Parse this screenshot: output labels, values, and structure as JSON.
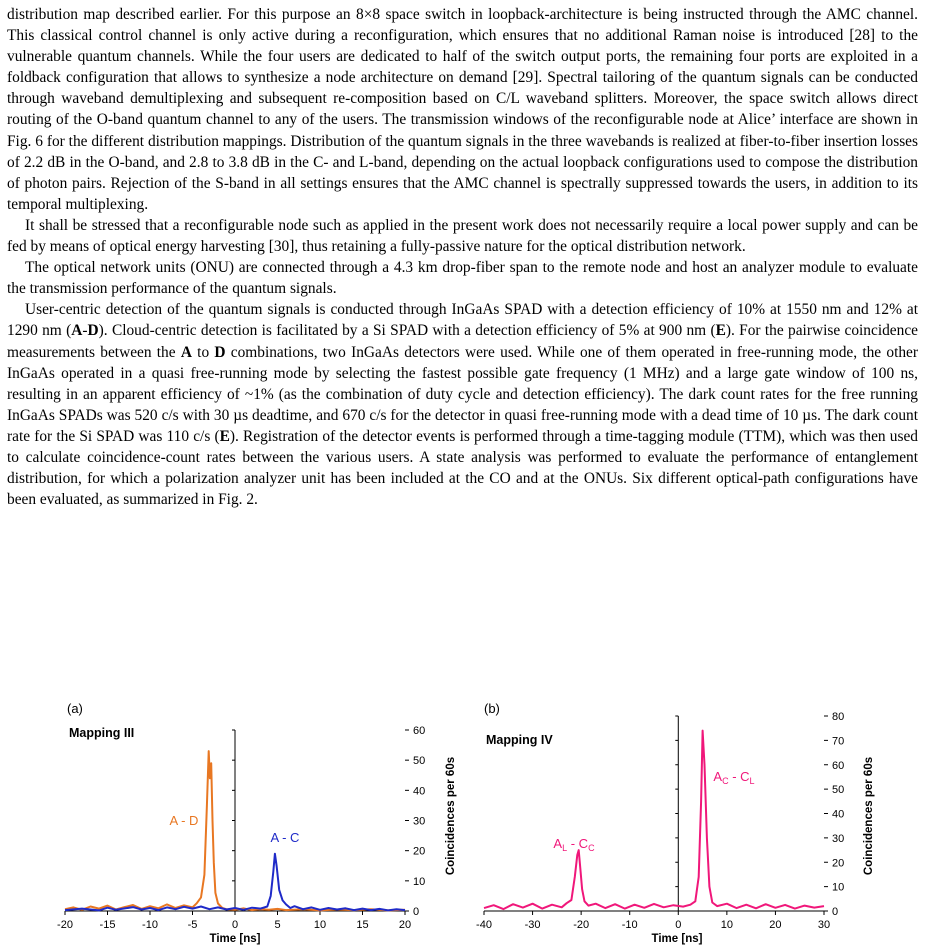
{
  "paragraphs": [
    "distribution map described earlier. For this purpose an 8×8 space switch in loopback-architecture is being instructed through the AMC channel. This classical control channel is only active during a reconfiguration, which ensures that no additional Raman noise is introduced [28] to the vulnerable quantum channels. While the four users are dedicated to half of the switch output ports, the remaining four ports are exploited in a foldback configuration that allows to synthesize a node architecture on demand [29]. Spectral tailoring of the quantum signals can be conducted through waveband demultiplexing and subsequent re-composition based on C/L waveband splitters. Moreover, the space switch allows direct routing of the O-band quantum channel to any of the users. The transmission windows of the reconfigurable node at Alice’ interface are shown in Fig. 6 for the different distribution mappings. Distribution of the quantum signals in the three wavebands is realized at fiber-to-fiber insertion losses of 2.2 dB in the O-band, and 2.8 to 3.8 dB in the C- and L-band, depending on the actual loopback configurations used to compose the distribution of photon pairs. Rejection of the S-band in all settings ensures that the AMC channel is spectrally suppressed towards the users, in addition to its temporal multiplexing.",
    "It shall be stressed that a reconfigurable node such as applied in the present work does not necessarily require a local power supply and can be fed by means of optical energy harvesting [30], thus retaining a fully-passive nature for the optical distribution network.",
    "The optical network units (ONU) are connected through a 4.3 km drop-fiber span to the remote node and host an analyzer module to evaluate the transmission performance of the quantum signals."
  ],
  "para4": {
    "t1": "User-centric detection of the quantum signals is conducted through InGaAs SPAD with a detection efficiency of 10% at 1550 nm and 12% at 1290 nm (",
    "b1": "A",
    "t2": "-",
    "b2": "D",
    "t3": "). Cloud-centric detection is facilitated by a Si SPAD with a detection efficiency of 5% at 900 nm (",
    "b3": "E",
    "t4": "). For the pairwise coincidence measurements between the ",
    "b4": "A",
    "t5": " to ",
    "b5": "D",
    "t6": " combinations, two InGaAs detectors were used. While one of them operated in free-running mode, the other InGaAs operated in a quasi free-running mode by selecting the fastest possible gate frequency (1 MHz) and a large gate window of 100 ns, resulting in an apparent efficiency of ~1% (as the combination of duty cycle and detection efficiency). The dark count rates for the free running InGaAs SPADs was 520 c/s with 30 µs deadtime, and 670 c/s for the detector in quasi free-running mode with a dead time of 10 µs. The dark count rate for the Si SPAD was 110 c/s (",
    "b6": "E",
    "t7": "). Registration of the detector events is performed through a time-tagging module (TTM), which was then used to calculate coincidence-count rates between the various users. A state analysis was performed to evaluate the performance of entanglement distribution, for which a polarization analyzer unit has been included at the CO and at the ONUs. Six different optical-path configurations have been evaluated, as summarized in Fig. 2."
  },
  "chart_data": [
    {
      "type": "line",
      "panel_label": "(a)",
      "title": "Mapping III",
      "xlabel": "Time [ns]",
      "ylabel": "Coincidences per 60s",
      "xlim": [
        -20,
        20
      ],
      "ylim": [
        0,
        60
      ],
      "xticks": [
        -20,
        -15,
        -10,
        -5,
        0,
        5,
        10,
        15,
        20
      ],
      "yticks": [
        0,
        10,
        20,
        30,
        40,
        50,
        60
      ],
      "grid": false,
      "series": [
        {
          "name": "A - D",
          "color": "#E87722",
          "points": [
            [
              -20,
              0.6
            ],
            [
              -19,
              1.2
            ],
            [
              -18,
              0.4
            ],
            [
              -17,
              1.5
            ],
            [
              -16,
              0.8
            ],
            [
              -15,
              1.8
            ],
            [
              -14,
              0.5
            ],
            [
              -13,
              1.3
            ],
            [
              -12,
              2.0
            ],
            [
              -11,
              0.7
            ],
            [
              -10,
              1.6
            ],
            [
              -9,
              0.9
            ],
            [
              -8,
              2.2
            ],
            [
              -7,
              1.0
            ],
            [
              -6,
              1.9
            ],
            [
              -5,
              1.2
            ],
            [
              -4.5,
              2.6
            ],
            [
              -4,
              4.5
            ],
            [
              -3.6,
              12
            ],
            [
              -3.3,
              35
            ],
            [
              -3.1,
              53
            ],
            [
              -2.95,
              44
            ],
            [
              -2.8,
              49
            ],
            [
              -2.65,
              30
            ],
            [
              -2.5,
              16
            ],
            [
              -2.3,
              6
            ],
            [
              -2.0,
              2.5
            ],
            [
              -1.5,
              1.0
            ],
            [
              -1,
              0.6
            ],
            [
              0,
              0.4
            ],
            [
              1,
              0.9
            ],
            [
              2,
              0.3
            ],
            [
              3,
              0.6
            ],
            [
              4,
              0.4
            ],
            [
              5,
              0.7
            ],
            [
              6,
              0.3
            ],
            [
              8,
              0.6
            ],
            [
              10,
              0.2
            ],
            [
              12,
              0.5
            ],
            [
              14,
              0.3
            ],
            [
              16,
              0.6
            ],
            [
              18,
              0.2
            ],
            [
              20,
              0.4
            ]
          ]
        },
        {
          "name": "A - C",
          "color": "#1F2AC8",
          "points": [
            [
              -20,
              0.3
            ],
            [
              -18,
              0.8
            ],
            [
              -16,
              0.2
            ],
            [
              -15,
              1.1
            ],
            [
              -14,
              0.4
            ],
            [
              -12,
              1.3
            ],
            [
              -11,
              0.5
            ],
            [
              -10,
              1.0
            ],
            [
              -9,
              0.3
            ],
            [
              -8,
              1.2
            ],
            [
              -7,
              0.6
            ],
            [
              -6,
              1.4
            ],
            [
              -5,
              0.8
            ],
            [
              -4,
              1.5
            ],
            [
              -3,
              0.6
            ],
            [
              -2,
              1.2
            ],
            [
              -1,
              0.5
            ],
            [
              0,
              1.0
            ],
            [
              1,
              0.4
            ],
            [
              2,
              1.1
            ],
            [
              3,
              0.8
            ],
            [
              3.8,
              1.5
            ],
            [
              4.2,
              5
            ],
            [
              4.5,
              13
            ],
            [
              4.7,
              19
            ],
            [
              4.9,
              15
            ],
            [
              5.2,
              7
            ],
            [
              5.6,
              3.5
            ],
            [
              6,
              2.2
            ],
            [
              6.5,
              1.0
            ],
            [
              7,
              1.6
            ],
            [
              8,
              0.6
            ],
            [
              9,
              1.2
            ],
            [
              10,
              0.4
            ],
            [
              11,
              1.0
            ],
            [
              12,
              0.5
            ],
            [
              13,
              0.9
            ],
            [
              14,
              0.3
            ],
            [
              15,
              0.8
            ],
            [
              16,
              0.3
            ],
            [
              17,
              0.7
            ],
            [
              18,
              0.2
            ],
            [
              19,
              0.6
            ],
            [
              20,
              0.3
            ]
          ]
        }
      ]
    },
    {
      "type": "line",
      "panel_label": "(b)",
      "title": "Mapping IV",
      "xlabel": "Time [ns]",
      "ylabel": "Coincidences per 60s",
      "xlim": [
        -40,
        30
      ],
      "ylim": [
        0,
        80
      ],
      "xticks": [
        -40,
        -30,
        -20,
        -10,
        0,
        10,
        20,
        30
      ],
      "yticks": [
        0,
        10,
        20,
        30,
        40,
        50,
        60,
        70,
        80
      ],
      "grid": false,
      "series": [
        {
          "name": "AL - CC",
          "name_parts": [
            "A",
            "L",
            " - C",
            "C"
          ],
          "color": "#F0177A",
          "points": [
            [
              -40,
              1.2
            ],
            [
              -38,
              2.4
            ],
            [
              -36,
              0.8
            ],
            [
              -34,
              2.8
            ],
            [
              -32,
              1.4
            ],
            [
              -30,
              3.0
            ],
            [
              -28,
              1.0
            ],
            [
              -26,
              2.6
            ],
            [
              -24,
              1.5
            ],
            [
              -23,
              3.2
            ],
            [
              -22,
              4.5
            ],
            [
              -21.3,
              14
            ],
            [
              -20.8,
              23
            ],
            [
              -20.5,
              25
            ],
            [
              -20.2,
              18
            ],
            [
              -19.8,
              9
            ],
            [
              -19.3,
              4
            ],
            [
              -18.5,
              2.2
            ],
            [
              -17,
              3.0
            ],
            [
              -15,
              1.2
            ],
            [
              -13,
              2.8
            ],
            [
              -11,
              1.0
            ],
            [
              -9,
              2.6
            ],
            [
              -7,
              1.3
            ],
            [
              -5,
              2.9
            ],
            [
              -3,
              1.5
            ],
            [
              -1,
              2.4
            ],
            [
              1,
              1.8
            ],
            [
              2.5,
              2.6
            ],
            [
              3.5,
              4
            ],
            [
              4.2,
              14
            ],
            [
              4.7,
              45
            ],
            [
              5.0,
              74
            ],
            [
              5.4,
              60
            ],
            [
              5.9,
              30
            ],
            [
              6.4,
              10
            ],
            [
              7,
              3.5
            ],
            [
              8,
              2.0
            ],
            [
              10,
              3.0
            ],
            [
              12,
              1.2
            ],
            [
              14,
              2.6
            ],
            [
              16,
              1.1
            ],
            [
              18,
              2.8
            ],
            [
              20,
              1.3
            ],
            [
              22,
              2.5
            ],
            [
              24,
              1.0
            ],
            [
              26,
              2.2
            ],
            [
              28,
              1.4
            ],
            [
              30,
              2.0
            ]
          ]
        },
        {
          "name": "AC - CL",
          "name_parts": [
            "A",
            "C",
            " - C",
            "L"
          ],
          "color": "#F0177A"
        }
      ]
    }
  ]
}
